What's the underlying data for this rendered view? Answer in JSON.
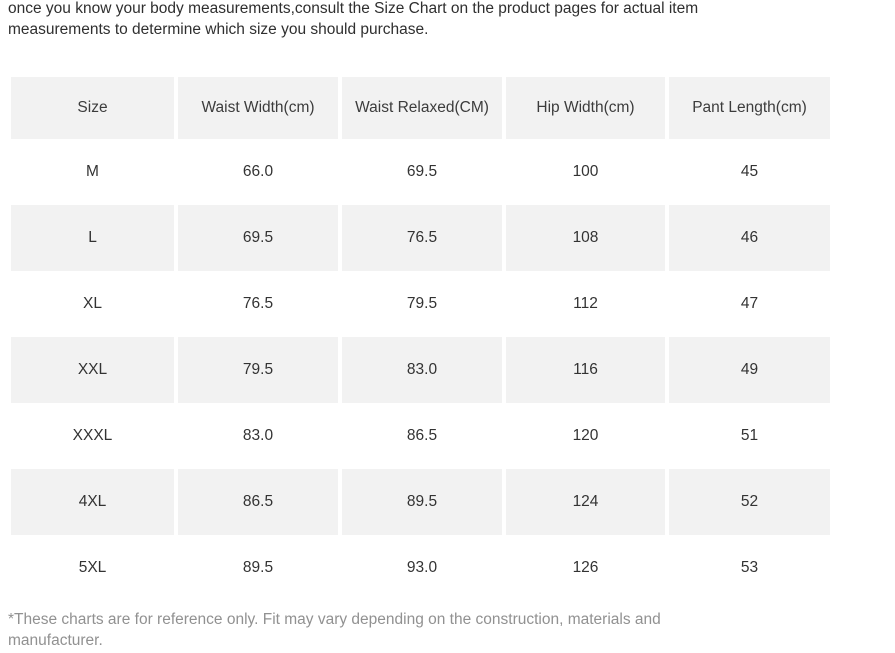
{
  "intro": "once you know your body measurements,consult the Size Chart on the product pages for actual item measurements to determine which size you should purchase.",
  "table": {
    "columns": [
      "Size",
      "Waist Width(cm)",
      "Waist Relaxed(CM)",
      "Hip Width(cm)",
      "Pant Length(cm)"
    ],
    "rows": [
      {
        "size": "M",
        "waist_width": "66.0",
        "waist_relaxed": "69.5",
        "hip_width": "100",
        "pant_length": "45"
      },
      {
        "size": "L",
        "waist_width": "69.5",
        "waist_relaxed": "76.5",
        "hip_width": "108",
        "pant_length": "46"
      },
      {
        "size": "XL",
        "waist_width": "76.5",
        "waist_relaxed": "79.5",
        "hip_width": "112",
        "pant_length": "47"
      },
      {
        "size": "XXL",
        "waist_width": "79.5",
        "waist_relaxed": "83.0",
        "hip_width": "116",
        "pant_length": "49"
      },
      {
        "size": "XXXL",
        "waist_width": "83.0",
        "waist_relaxed": "86.5",
        "hip_width": "120",
        "pant_length": "51"
      },
      {
        "size": "4XL",
        "waist_width": "86.5",
        "waist_relaxed": "89.5",
        "hip_width": "124",
        "pant_length": "52"
      },
      {
        "size": "5XL",
        "waist_width": "89.5",
        "waist_relaxed": "93.0",
        "hip_width": "126",
        "pant_length": "53"
      }
    ]
  },
  "footnote": "*These charts are for reference only. Fit may vary depending on the construction, materials and manufacturer.",
  "colors": {
    "cell_bg": "#f2f2f2",
    "body_text": "#2f2f2f",
    "table_text": "#333333",
    "footnote_text": "#919191"
  }
}
